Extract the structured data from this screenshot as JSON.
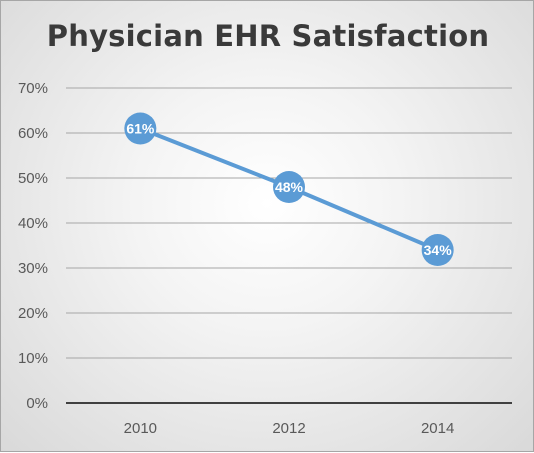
{
  "chart_data": {
    "type": "line",
    "title": "Physician EHR Satisfaction",
    "xlabel": "",
    "ylabel": "",
    "categories": [
      "2010",
      "2012",
      "2014"
    ],
    "series": [
      {
        "values": [
          0.61,
          0.48,
          0.34
        ],
        "data_labels": [
          "61%",
          "48%",
          "34%"
        ]
      }
    ],
    "ylim": [
      0,
      0.7
    ],
    "yticks": [
      0,
      0.1,
      0.2,
      0.3,
      0.4,
      0.5,
      0.6,
      0.7
    ],
    "ytick_labels": [
      "0%",
      "10%",
      "20%",
      "30%",
      "40%",
      "50%",
      "60%",
      "70%"
    ],
    "grid": true,
    "legend": "none",
    "colors": {
      "series": "#5b9bd5",
      "gridline": "#a6a6a6",
      "axis": "#404040",
      "title": "#3a3a3a"
    }
  }
}
